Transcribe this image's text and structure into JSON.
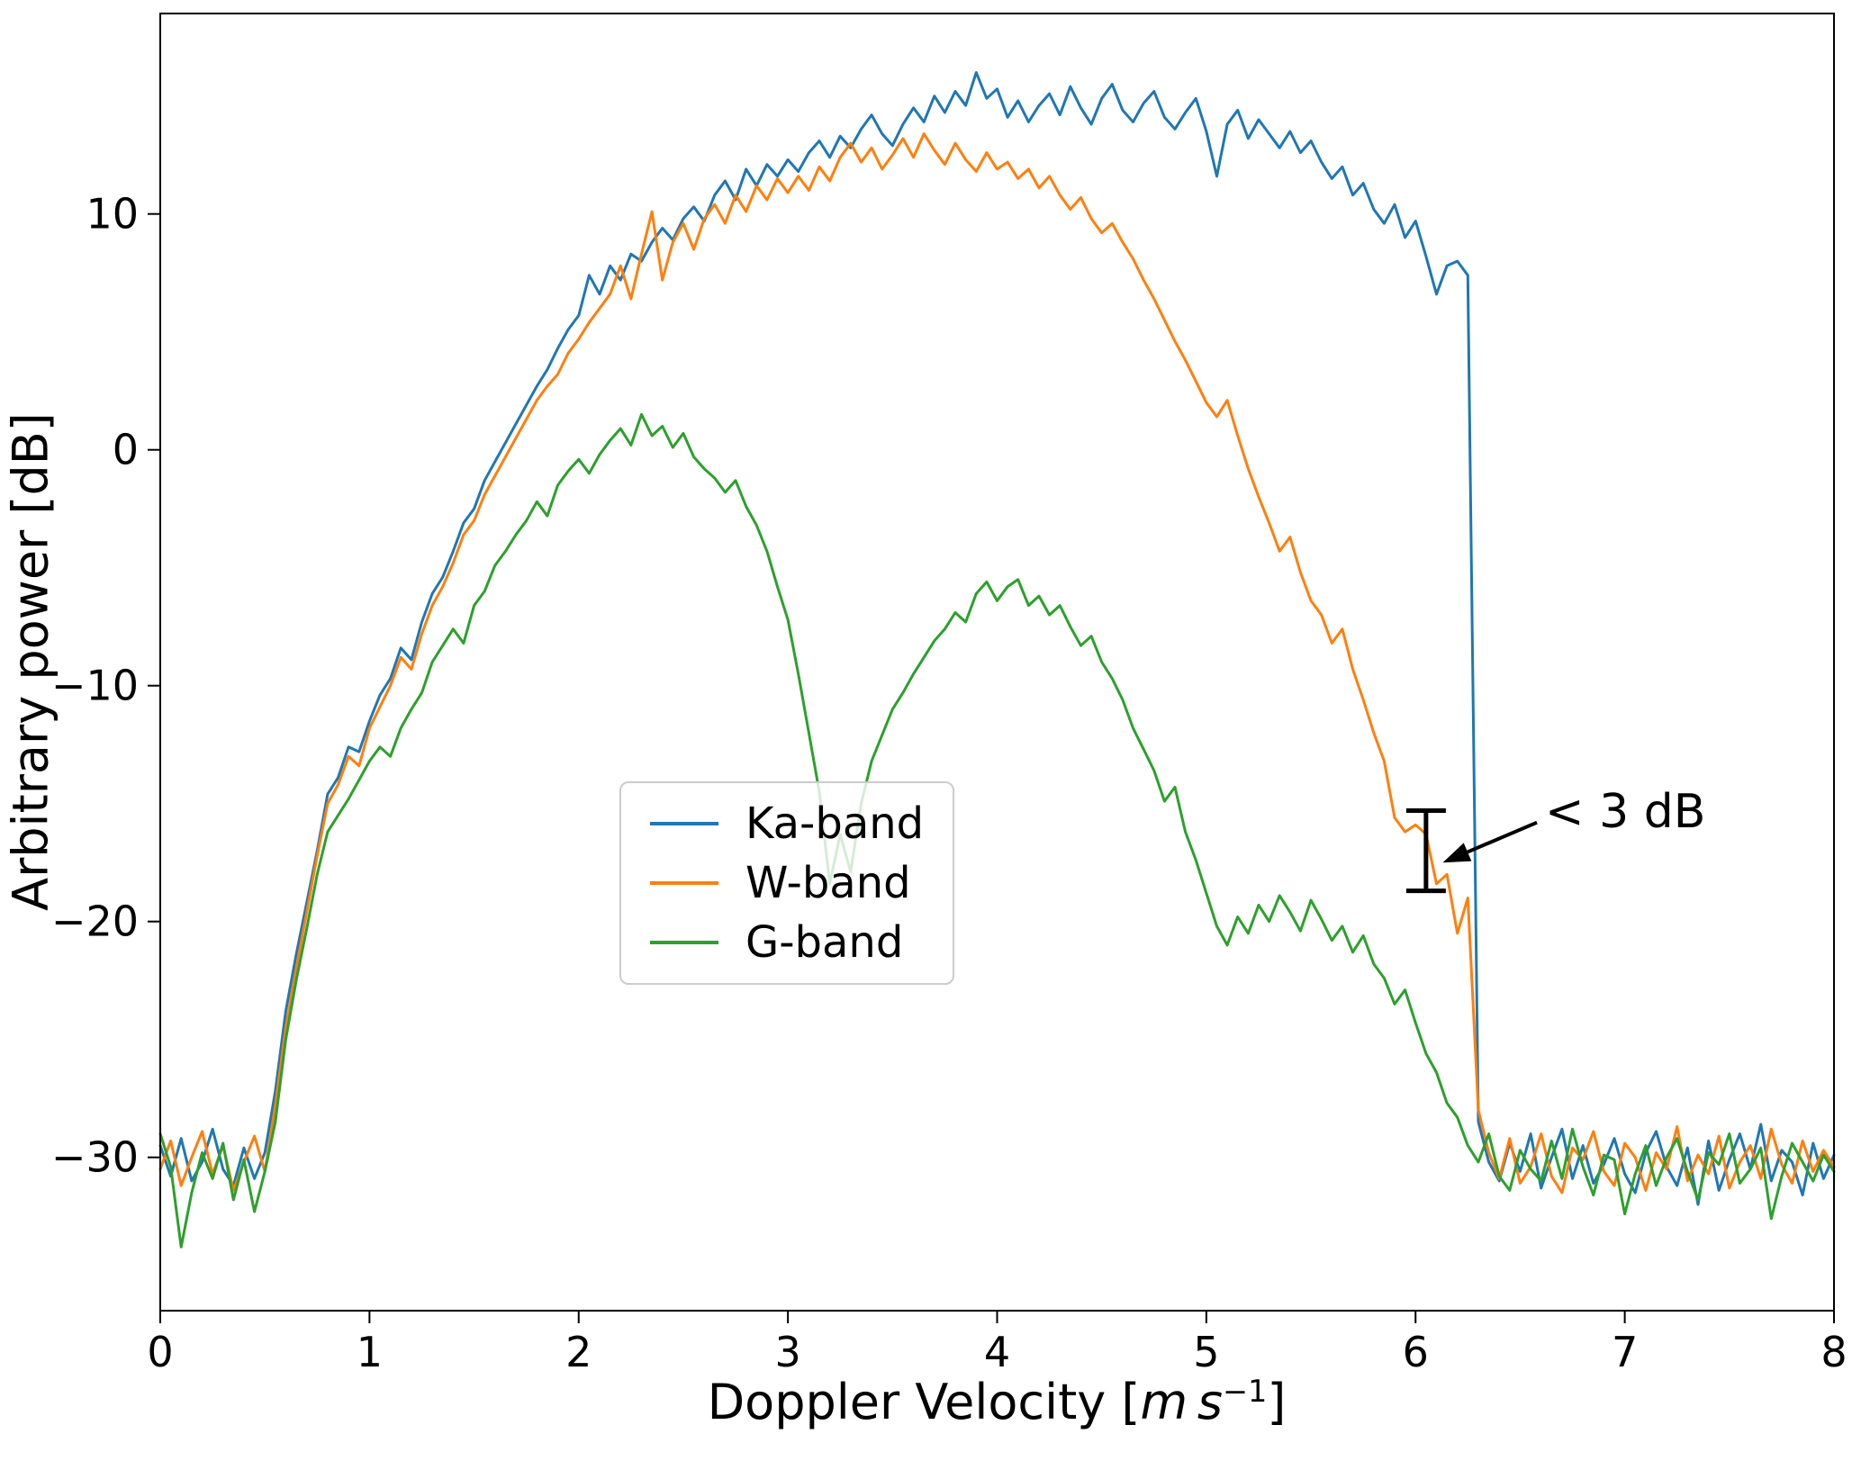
{
  "figure": {
    "background": "#ffffff"
  },
  "chart_data": {
    "type": "line",
    "title": "",
    "ylabel": "Arbitrary power [dB]",
    "xlabel": {
      "prefix": "Doppler Velocity [",
      "math": "m s",
      "sup": "−1",
      "suffix": "]"
    },
    "xlim": [
      0,
      8
    ],
    "ylim": [
      -36.5,
      18.5
    ],
    "grid": false,
    "legend_position": "inside lower-center-left",
    "xticks": [
      0,
      1,
      2,
      3,
      4,
      5,
      6,
      7,
      8
    ],
    "xtick_labels": [
      "0",
      "1",
      "2",
      "3",
      "4",
      "5",
      "6",
      "7",
      "8"
    ],
    "yticks": [
      10,
      0,
      -10,
      -20,
      -30
    ],
    "ytick_labels": [
      "10",
      "0",
      "−10",
      "−20",
      "−30"
    ],
    "x": {
      "start": 0,
      "step": 0.05,
      "count": 161
    },
    "series": [
      {
        "name": "Ka-band",
        "color": "#1f77b4",
        "values": [
          -29.5,
          -30.8,
          -29.2,
          -31.0,
          -30.2,
          -28.8,
          -30.5,
          -31.2,
          -29.6,
          -30.9,
          -29.8,
          -27.2,
          -23.8,
          -21.4,
          -19.2,
          -17.0,
          -14.6,
          -13.9,
          -12.6,
          -12.8,
          -11.5,
          -10.4,
          -9.7,
          -8.4,
          -8.9,
          -7.3,
          -6.1,
          -5.4,
          -4.3,
          -3.1,
          -2.5,
          -1.3,
          -0.5,
          0.3,
          1.1,
          1.9,
          2.7,
          3.4,
          4.3,
          5.1,
          5.7,
          7.4,
          6.6,
          7.8,
          7.2,
          8.3,
          8.0,
          8.8,
          9.4,
          8.9,
          9.8,
          10.3,
          9.7,
          10.8,
          11.4,
          10.6,
          11.9,
          11.2,
          12.1,
          11.6,
          12.3,
          11.8,
          12.6,
          13.1,
          12.4,
          13.3,
          12.8,
          13.6,
          14.2,
          13.4,
          12.9,
          13.8,
          14.5,
          13.9,
          15.0,
          14.3,
          15.2,
          14.6,
          16.0,
          14.9,
          15.3,
          14.1,
          14.8,
          13.9,
          14.6,
          15.1,
          14.2,
          15.4,
          14.5,
          13.8,
          14.9,
          15.5,
          14.4,
          13.9,
          14.7,
          15.2,
          14.1,
          13.6,
          14.3,
          14.9,
          13.5,
          11.6,
          13.8,
          14.4,
          13.2,
          14.0,
          13.4,
          12.8,
          13.5,
          12.6,
          13.1,
          12.2,
          11.5,
          12.0,
          10.8,
          11.3,
          10.2,
          9.6,
          10.4,
          9.0,
          9.7,
          8.2,
          6.6,
          7.8,
          8.0,
          7.4,
          -28.5,
          -30.2,
          -31.0,
          -29.4,
          -30.6,
          -29.0,
          -31.3,
          -30.0,
          -28.8,
          -30.9,
          -29.5,
          -31.1,
          -30.3,
          -29.2,
          -30.7,
          -31.5,
          -29.8,
          -28.9,
          -30.4,
          -31.2,
          -29.6,
          -32.0,
          -29.3,
          -31.4,
          -30.1,
          -29.0,
          -30.5,
          -28.6,
          -31.0,
          -29.7,
          -30.2,
          -31.6,
          -29.4,
          -30.9,
          -29.9
        ]
      },
      {
        "name": "W-band",
        "color": "#ff7f0e",
        "values": [
          -30.5,
          -29.3,
          -31.2,
          -30.0,
          -28.9,
          -30.7,
          -29.5,
          -31.4,
          -30.2,
          -29.1,
          -30.6,
          -27.8,
          -24.5,
          -22.0,
          -19.6,
          -17.2,
          -15.0,
          -14.2,
          -13.0,
          -13.4,
          -11.8,
          -10.9,
          -10.0,
          -8.8,
          -9.3,
          -7.8,
          -6.6,
          -5.8,
          -4.8,
          -3.6,
          -3.0,
          -1.9,
          -1.1,
          -0.3,
          0.5,
          1.3,
          2.1,
          2.7,
          3.2,
          4.1,
          4.7,
          5.4,
          6.0,
          6.6,
          7.8,
          6.4,
          8.3,
          10.1,
          7.2,
          8.8,
          9.6,
          8.5,
          9.8,
          10.4,
          9.6,
          10.8,
          10.1,
          11.2,
          10.6,
          11.5,
          10.9,
          11.6,
          11.0,
          12.0,
          11.4,
          12.4,
          13.0,
          12.2,
          12.8,
          11.9,
          12.5,
          13.2,
          12.4,
          13.4,
          12.7,
          12.1,
          13.0,
          12.3,
          11.8,
          12.6,
          11.9,
          12.2,
          11.5,
          11.9,
          11.1,
          11.6,
          10.8,
          10.2,
          10.7,
          9.8,
          9.2,
          9.6,
          8.8,
          8.1,
          7.2,
          6.4,
          5.5,
          4.6,
          3.8,
          2.9,
          2.0,
          1.4,
          2.1,
          0.6,
          -0.8,
          -2.0,
          -3.1,
          -4.3,
          -3.7,
          -5.2,
          -6.4,
          -7.0,
          -8.2,
          -7.6,
          -9.3,
          -10.6,
          -12.0,
          -13.2,
          -15.6,
          -16.2,
          -15.9,
          -16.3,
          -18.4,
          -18.0,
          -20.5,
          -19.0,
          -28.0,
          -29.8,
          -30.9,
          -29.2,
          -31.1,
          -30.4,
          -29.0,
          -30.8,
          -31.5,
          -29.6,
          -30.1,
          -28.9,
          -30.6,
          -31.2,
          -29.4,
          -30.0,
          -31.4,
          -29.8,
          -30.5,
          -28.7,
          -31.0,
          -29.9,
          -30.7,
          -29.1,
          -31.3,
          -30.2,
          -29.5,
          -30.9,
          -28.8,
          -30.3,
          -31.1,
          -29.3,
          -30.6,
          -29.7,
          -30.4
        ]
      },
      {
        "name": "G-band",
        "color": "#2ca02c",
        "values": [
          -29.0,
          -30.4,
          -33.8,
          -31.5,
          -29.8,
          -30.9,
          -29.4,
          -31.8,
          -30.1,
          -32.3,
          -30.6,
          -28.5,
          -25.0,
          -22.5,
          -20.3,
          -18.0,
          -16.2,
          -15.5,
          -14.8,
          -14.0,
          -13.2,
          -12.6,
          -13.0,
          -11.8,
          -11.0,
          -10.3,
          -9.0,
          -8.3,
          -7.6,
          -8.2,
          -6.6,
          -6.0,
          -4.9,
          -4.3,
          -3.6,
          -3.0,
          -2.2,
          -2.8,
          -1.5,
          -0.9,
          -0.4,
          -1.0,
          -0.2,
          0.4,
          0.9,
          0.2,
          1.5,
          0.6,
          1.0,
          0.1,
          0.7,
          -0.3,
          -0.8,
          -1.2,
          -1.8,
          -1.3,
          -2.4,
          -3.2,
          -4.3,
          -5.8,
          -7.2,
          -9.5,
          -12.0,
          -14.5,
          -18.4,
          -16.3,
          -17.9,
          -15.0,
          -13.2,
          -12.1,
          -11.0,
          -10.3,
          -9.5,
          -8.8,
          -8.1,
          -7.6,
          -6.9,
          -7.3,
          -6.1,
          -5.6,
          -6.4,
          -5.8,
          -5.5,
          -6.6,
          -6.2,
          -7.0,
          -6.6,
          -7.5,
          -8.3,
          -7.9,
          -9.0,
          -9.7,
          -10.6,
          -11.8,
          -12.7,
          -13.6,
          -14.9,
          -14.3,
          -16.2,
          -17.4,
          -18.8,
          -20.2,
          -21.0,
          -19.8,
          -20.5,
          -19.3,
          -20.0,
          -18.9,
          -19.6,
          -20.4,
          -19.1,
          -19.9,
          -20.8,
          -20.2,
          -21.3,
          -20.6,
          -21.8,
          -22.4,
          -23.5,
          -22.9,
          -24.3,
          -25.6,
          -26.4,
          -27.7,
          -28.3,
          -29.5,
          -30.2,
          -29.0,
          -30.8,
          -31.4,
          -29.7,
          -30.5,
          -31.0,
          -29.3,
          -30.9,
          -28.8,
          -30.4,
          -31.6,
          -29.9,
          -30.1,
          -32.4,
          -30.7,
          -29.5,
          -31.2,
          -30.0,
          -29.2,
          -30.6,
          -31.8,
          -29.8,
          -30.3,
          -29.0,
          -31.1,
          -30.5,
          -29.6,
          -32.6,
          -30.8,
          -29.4,
          -30.2,
          -31.0,
          -29.9,
          -30.6
        ]
      }
    ],
    "annotation": {
      "text": "< 3 dB",
      "errorbar": {
        "x": 6.05,
        "y_top": -15.3,
        "y_bottom": -18.7
      },
      "arrow": {
        "from": {
          "x": 6.58,
          "y": -15.8
        },
        "to": {
          "x": 6.13,
          "y": -17.5
        }
      }
    }
  },
  "legend": {
    "items": [
      {
        "label": "Ka-band",
        "color": "#1f77b4"
      },
      {
        "label": "W-band",
        "color": "#ff7f0e"
      },
      {
        "label": "G-band",
        "color": "#2ca02c"
      }
    ]
  }
}
